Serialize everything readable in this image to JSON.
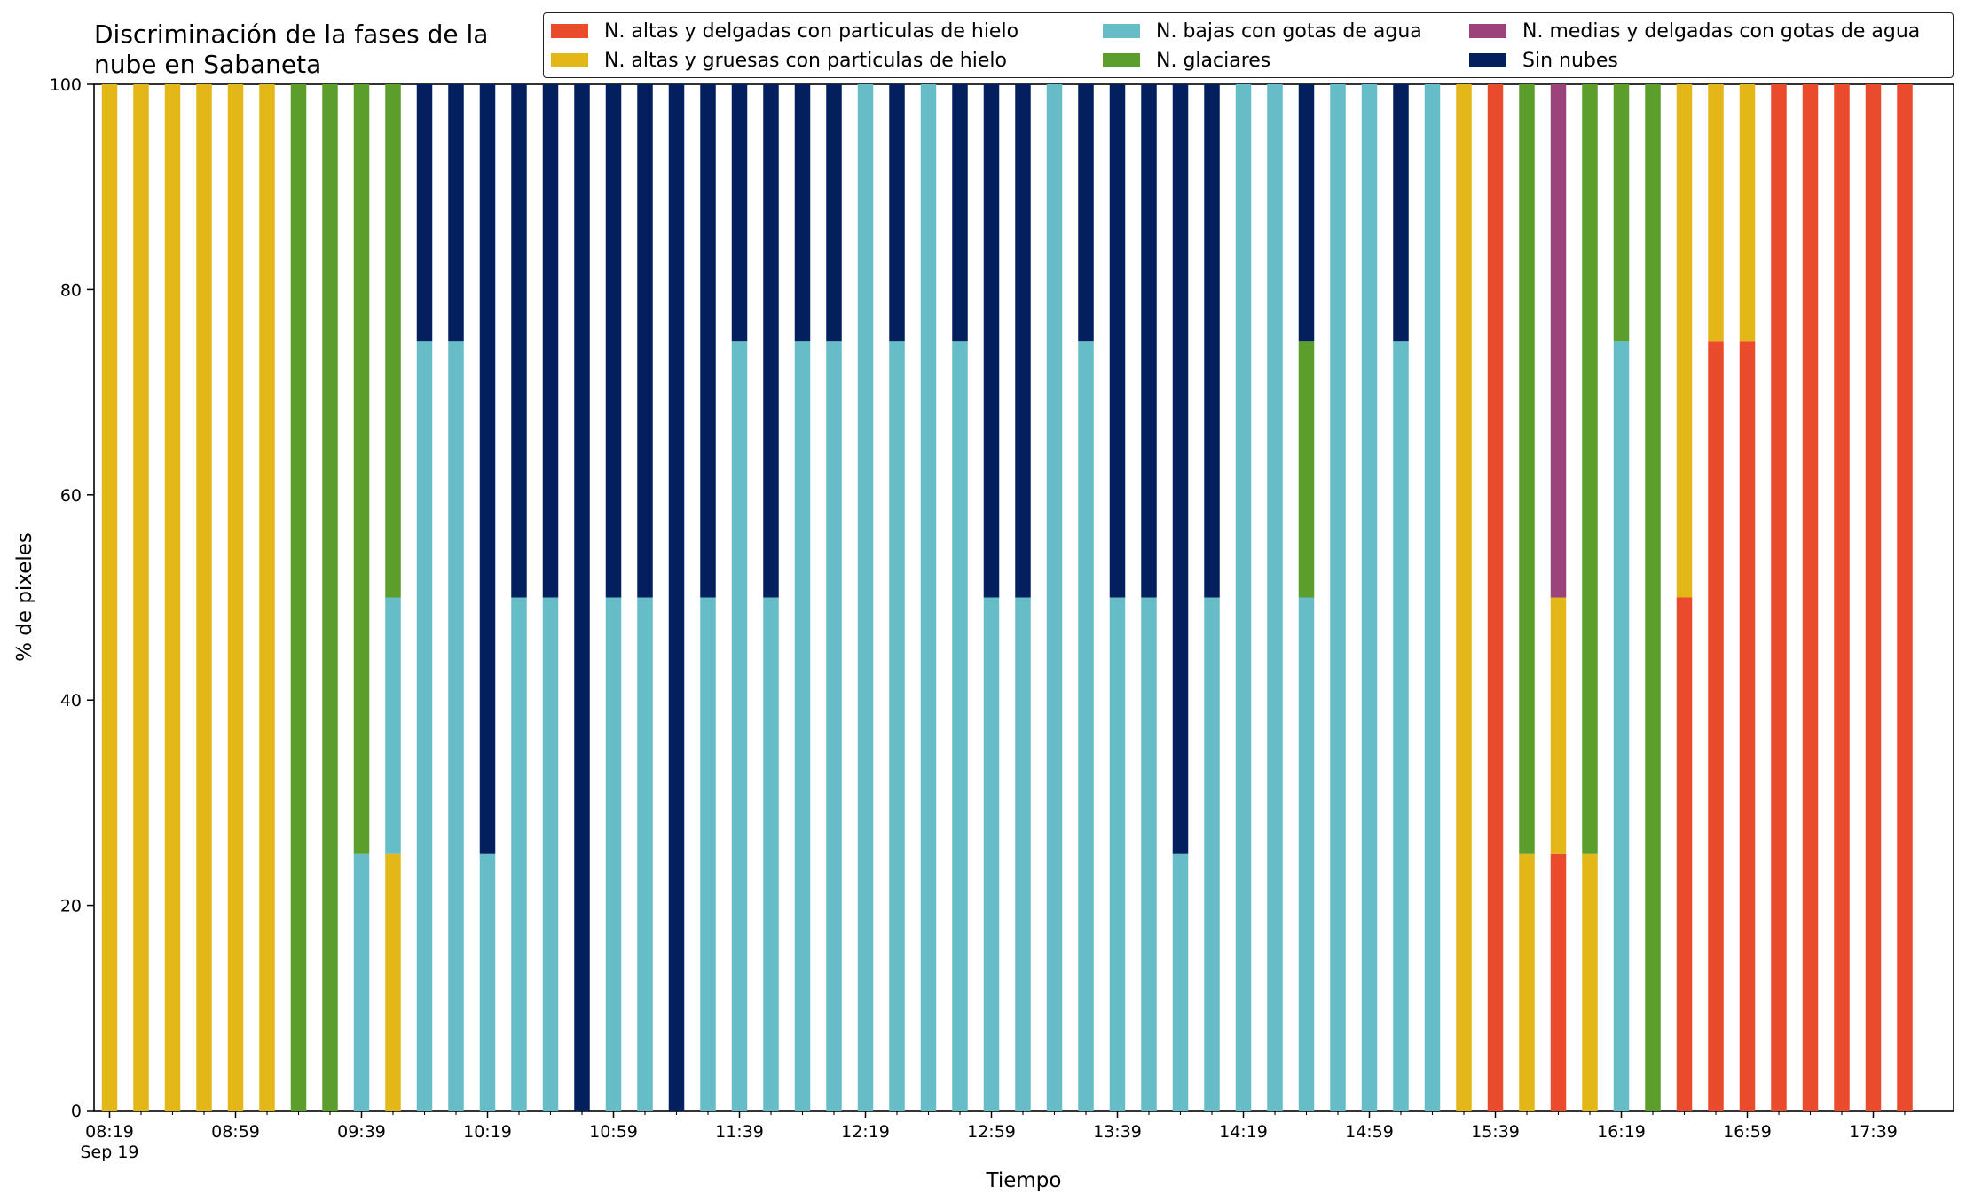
{
  "chart_data": {
    "type": "bar",
    "stacked": true,
    "title_lines": [
      "Discriminación de la fases de la",
      "nube en Sabaneta"
    ],
    "xlabel": "Tiempo",
    "ylabel": "% de pixeles",
    "ylim": [
      0,
      100
    ],
    "yticks": [
      "0",
      "20",
      "40",
      "60",
      "80",
      "100"
    ],
    "xtick_labels": [
      "08:19",
      "08:59",
      "09:39",
      "10:19",
      "10:59",
      "11:39",
      "12:19",
      "12:59",
      "13:39",
      "14:19",
      "14:59",
      "15:39",
      "16:19",
      "16:59",
      "17:39"
    ],
    "xtick_sublabel": "Sep 19",
    "legend_position": "top-right",
    "grid": false,
    "categories": [
      "08:19",
      "08:29",
      "08:39",
      "08:49",
      "08:59",
      "09:09",
      "09:19",
      "09:29",
      "09:39",
      "09:49",
      "09:59",
      "10:09",
      "10:19",
      "10:29",
      "10:39",
      "10:49",
      "10:59",
      "11:09",
      "11:19",
      "11:29",
      "11:39",
      "11:49",
      "11:59",
      "12:09",
      "12:19",
      "12:29",
      "12:39",
      "12:49",
      "12:59",
      "13:09",
      "13:19",
      "13:29",
      "13:39",
      "13:49",
      "13:59",
      "14:09",
      "14:19",
      "14:29",
      "14:39",
      "14:49",
      "14:59",
      "15:09",
      "15:19",
      "15:29",
      "15:39",
      "15:49",
      "15:59",
      "16:09",
      "16:19",
      "16:29",
      "16:39",
      "16:49",
      "16:59",
      "17:09",
      "17:19",
      "17:29",
      "17:39",
      "17:49"
    ],
    "series": [
      {
        "name": "N. altas y delgadas con particulas de hielo",
        "color": "#ea4b2c",
        "values": [
          0,
          0,
          0,
          0,
          0,
          0,
          0,
          0,
          0,
          0,
          0,
          0,
          0,
          0,
          0,
          0,
          0,
          0,
          0,
          0,
          0,
          0,
          0,
          0,
          0,
          0,
          0,
          0,
          0,
          0,
          0,
          0,
          0,
          0,
          0,
          0,
          0,
          0,
          0,
          0,
          0,
          0,
          0,
          0,
          100,
          0,
          25,
          0,
          0,
          0,
          50,
          75,
          75,
          100,
          100,
          100,
          100,
          100
        ]
      },
      {
        "name": "N. altas y gruesas con particulas de hielo",
        "color": "#e3b718",
        "values": [
          100,
          100,
          100,
          100,
          100,
          100,
          0,
          0,
          0,
          25,
          0,
          0,
          0,
          0,
          0,
          0,
          0,
          0,
          0,
          0,
          0,
          0,
          0,
          0,
          0,
          0,
          0,
          0,
          0,
          0,
          0,
          0,
          0,
          0,
          0,
          0,
          0,
          0,
          0,
          0,
          0,
          0,
          0,
          100,
          0,
          25,
          25,
          25,
          0,
          0,
          50,
          25,
          25,
          0,
          0,
          0,
          0,
          0
        ]
      },
      {
        "name": "N. bajas con gotas de agua",
        "color": "#66bdc8",
        "values": [
          0,
          0,
          0,
          0,
          0,
          0,
          0,
          0,
          25,
          25,
          75,
          75,
          25,
          50,
          50,
          0,
          50,
          50,
          0,
          50,
          75,
          50,
          75,
          75,
          100,
          75,
          100,
          75,
          50,
          50,
          100,
          75,
          50,
          50,
          25,
          50,
          100,
          100,
          50,
          100,
          100,
          75,
          100,
          0,
          0,
          0,
          0,
          0,
          75,
          0,
          0,
          0,
          0,
          0,
          0,
          0,
          0,
          0
        ]
      },
      {
        "name": "N. medias y delgadas con gotas de agua",
        "color": "#9b437a",
        "values": [
          0,
          0,
          0,
          0,
          0,
          0,
          0,
          0,
          0,
          0,
          0,
          0,
          0,
          0,
          0,
          0,
          0,
          0,
          0,
          0,
          0,
          0,
          0,
          0,
          0,
          0,
          0,
          0,
          0,
          0,
          0,
          0,
          0,
          0,
          0,
          0,
          0,
          0,
          0,
          0,
          0,
          0,
          0,
          0,
          0,
          0,
          50,
          0,
          0,
          0,
          0,
          0,
          0,
          0,
          0,
          0,
          0,
          0
        ]
      },
      {
        "name": "N. glaciares",
        "color": "#5c9e2b",
        "values": [
          0,
          0,
          0,
          0,
          0,
          0,
          100,
          100,
          75,
          50,
          0,
          0,
          0,
          0,
          0,
          0,
          0,
          0,
          0,
          0,
          0,
          0,
          0,
          0,
          0,
          0,
          0,
          0,
          0,
          0,
          0,
          0,
          0,
          0,
          0,
          0,
          0,
          0,
          25,
          0,
          0,
          0,
          0,
          0,
          0,
          75,
          0,
          75,
          25,
          100,
          0,
          0,
          0,
          0,
          0,
          0,
          0,
          0
        ]
      },
      {
        "name": "Sin nubes",
        "color": "#041f5e",
        "values": [
          0,
          0,
          0,
          0,
          0,
          0,
          0,
          0,
          0,
          0,
          25,
          25,
          75,
          50,
          50,
          100,
          50,
          50,
          100,
          50,
          25,
          50,
          25,
          25,
          0,
          25,
          0,
          25,
          50,
          50,
          0,
          25,
          50,
          50,
          75,
          50,
          0,
          0,
          25,
          0,
          0,
          25,
          0,
          0,
          0,
          0,
          0,
          0,
          0,
          0,
          0,
          0,
          0,
          0,
          0,
          0,
          0,
          0
        ]
      }
    ]
  }
}
